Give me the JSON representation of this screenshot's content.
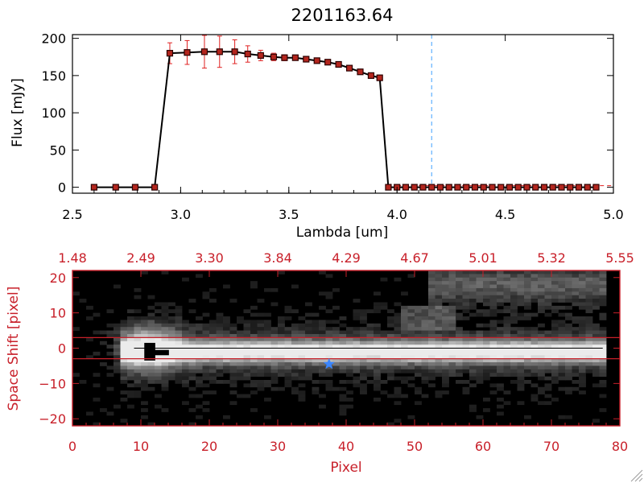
{
  "colors": {
    "axis_black": "#000000",
    "axis_red": "#c8202a",
    "marker_fill": "#b3261e",
    "marker_edge": "#2b0000",
    "error_bar": "#e02020",
    "cutoff_line": "#3fa0ff",
    "star": "#3a86ff",
    "background": "#ffffff"
  },
  "chart_data": [
    {
      "type": "line",
      "title": "2201163.64",
      "xlabel": "Lambda [um]",
      "ylabel": "Flux [mJy]",
      "xlim": [
        2.5,
        5.0
      ],
      "ylim": [
        -8,
        205
      ],
      "x_ticks": [
        2.5,
        3.0,
        3.5,
        4.0,
        4.5,
        5.0
      ],
      "x_tick_labels": [
        "2.5",
        "3.0",
        "3.5",
        "4.0",
        "4.5",
        "5.0"
      ],
      "y_ticks": [
        0,
        50,
        100,
        150,
        200
      ],
      "y_tick_labels": [
        "0",
        "50",
        "100",
        "150",
        "200"
      ],
      "grid": false,
      "cutoff_wavelength": 4.16,
      "series": [
        {
          "x": [
            2.6,
            2.7,
            2.79,
            2.88,
            2.95,
            3.03,
            3.11,
            3.18,
            3.25,
            3.31,
            3.37,
            3.43,
            3.48,
            3.53,
            3.58,
            3.63,
            3.68,
            3.73,
            3.78,
            3.83,
            3.88,
            3.92,
            3.96,
            4.0,
            4.04,
            4.08,
            4.12,
            4.16,
            4.2,
            4.24,
            4.28,
            4.32,
            4.36,
            4.4,
            4.44,
            4.48,
            4.52,
            4.56,
            4.6,
            4.64,
            4.68,
            4.72,
            4.76,
            4.8,
            4.84,
            4.88,
            4.92
          ],
          "y": [
            0,
            0,
            0,
            0,
            180,
            181,
            182,
            182,
            182,
            179,
            177,
            175,
            174,
            174,
            172,
            170,
            168,
            165,
            160,
            155,
            150,
            147,
            0,
            0,
            0,
            0,
            0,
            0,
            0,
            0,
            0,
            0,
            0,
            0,
            0,
            0,
            0,
            0,
            0,
            0,
            0,
            0,
            0,
            0,
            0,
            0,
            0
          ],
          "error": [
            0,
            0,
            0,
            0,
            14,
            16,
            22,
            21,
            16,
            11,
            7,
            5,
            4,
            3,
            3,
            3,
            3,
            3,
            3,
            3,
            3,
            3,
            0,
            0,
            0,
            0,
            0,
            0,
            0,
            0,
            0,
            0,
            0,
            0,
            0,
            0,
            0,
            0,
            0,
            0,
            0,
            0,
            0,
            0,
            0,
            0,
            0
          ]
        }
      ]
    },
    {
      "type": "heatmap",
      "xlabel": "Pixel",
      "ylabel": "Space Shift [pixel]",
      "xlim": [
        0,
        80
      ],
      "ylim": [
        -22,
        22
      ],
      "x_ticks": [
        0,
        10,
        20,
        30,
        40,
        50,
        60,
        70,
        80
      ],
      "x_tick_labels": [
        "0",
        "10",
        "20",
        "30",
        "40",
        "50",
        "60",
        "70",
        "80"
      ],
      "y_ticks": [
        -20,
        -10,
        0,
        10,
        20
      ],
      "y_tick_labels": [
        "−20",
        "−10",
        "0",
        "10",
        "20"
      ],
      "top_axis_tick_labels": [
        "1.48",
        "2.49",
        "3.30",
        "3.84",
        "4.29",
        "4.67",
        "5.01",
        "5.32",
        "5.55"
      ],
      "aperture_lines": [
        3,
        -3
      ],
      "center_line": 0,
      "source_position": {
        "x": 37.5,
        "y": -4.5
      },
      "spectral_trace": {
        "x_start": 7,
        "x_end": 78,
        "y_center": -1
      }
    }
  ]
}
